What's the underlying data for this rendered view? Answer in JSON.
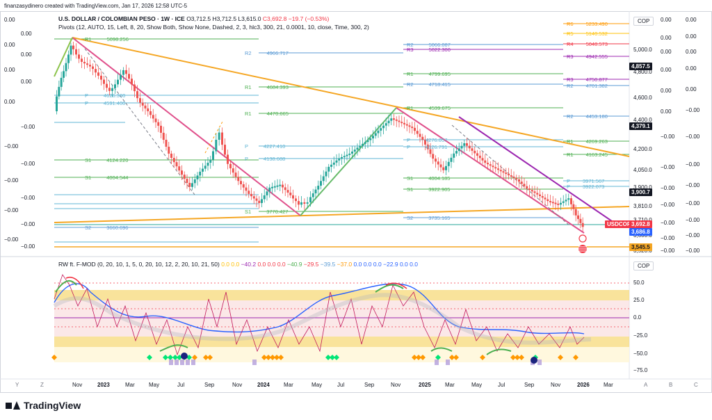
{
  "header": {
    "credit": "finanzasydinero created with TradingView.com, Jan 17, 2026 12:58 UTC-5"
  },
  "price": {
    "symbol": "U.S. DOLLAR / COLOMBIAN PESO · 1W · ICE",
    "open": "O3,712.5",
    "high": "H3,712.5",
    "low": "L3,615.0",
    "close": "C3,692.8",
    "change": "−19.7 (−0.53%)"
  },
  "pivots_line": "Pivots (12, AUTO, 15, Left, 8, 20, Show Both, Show None, Dashed, 2, 3, hlc3, 300, 21, 0.0001, 10, close, Time, 300, 2)",
  "osc_line": {
    "name": "RW ft. F-MOD (0, 20, 10, 1, 5, 0, 20, 10, 12, 2, 20, 10, 21, 50)",
    "values": [
      "0.0",
      "0.0",
      "−40.2",
      "0.0",
      "0.0",
      "0.0",
      "−40.9",
      "−29.5",
      "−39.5",
      "−37.0",
      "0.0",
      "0.0",
      "0.0",
      "−22.9",
      "0.0",
      "0.0"
    ]
  },
  "price_axis": {
    "currency": "COP",
    "ticks": [
      "5,000.0",
      "4,800.0",
      "4,600.0",
      "4,400.0",
      "4,200.0",
      "4,050.0",
      "3,900.0",
      "3,810.0",
      "3,710.0",
      "3,600.0",
      "3,520.0"
    ],
    "tags": {
      "t1": "4,857.5",
      "t2": "4,379.1",
      "t3": "3,900.7",
      "symbol": "USDCOP",
      "last": "3,692.8",
      "t4": "3,686.8",
      "t5": "3,545.5"
    }
  },
  "osc_axis": {
    "currency": "COP",
    "ticks": [
      "50.0",
      "25.0",
      "0.0",
      "−25.0",
      "−50.0",
      "−75.0"
    ]
  },
  "left_values": [
    "0.00",
    "0.00",
    "0.00",
    "0.00",
    "0.00",
    "0.00",
    "0.00",
    "−0.00",
    "−0.00",
    "−0.00",
    "−0.00",
    "−0.00",
    "−0.00",
    "−0.00",
    "−0.00",
    "−0.00"
  ],
  "right_values_a": [
    "0.00",
    "0.00",
    "0.00",
    "0.00",
    "0.00",
    "0.00",
    "−0.00",
    "−0.00",
    "−0.00",
    "−0.00",
    "−0.00",
    "−0.00",
    "−0.00",
    "−0.00"
  ],
  "right_values_b": [
    "0.00",
    "0.00",
    "0.00",
    "0.00",
    "0.00",
    "−0.00",
    "−0.00",
    "−0.00",
    "−0.00",
    "−0.00",
    "−0.00",
    "−0.00",
    "−0.00",
    "−0.00"
  ],
  "time_axis": [
    "Y",
    "Z",
    "Nov",
    "2023",
    "Mar",
    "May",
    "Jul",
    "Sep",
    "Nov",
    "2024",
    "Mar",
    "May",
    "Jul",
    "Sep",
    "Nov",
    "2025",
    "Mar",
    "May",
    "Jul",
    "Sep",
    "Nov",
    "2026",
    "Mar",
    "A",
    "B",
    "C"
  ],
  "pivots": [
    {
      "k": "R1",
      "v": "5098.256"
    },
    {
      "k": "R2",
      "v": "4966.717"
    },
    {
      "k": "R1",
      "v": "4684.393"
    },
    {
      "k": "R1",
      "v": "4470.665"
    },
    {
      "k": "P",
      "v": "4227.410"
    },
    {
      "k": "P",
      "v": "4138.688"
    },
    {
      "k": "S1",
      "v": "4124.220"
    },
    {
      "k": "S1",
      "v": "4004.544"
    },
    {
      "k": "S1",
      "v": "3770.427"
    },
    {
      "k": "S2",
      "v": "3660.696"
    },
    {
      "k": "R2",
      "v": "5066.087"
    },
    {
      "k": "R3",
      "v": "5022.300"
    },
    {
      "k": "R1",
      "v": "4799.695"
    },
    {
      "k": "R2",
      "v": "4718.415"
    },
    {
      "k": "R1",
      "v": "4539.675"
    },
    {
      "k": "S1",
      "v": "4004.185"
    },
    {
      "k": "S1",
      "v": "3922.905"
    },
    {
      "k": "S2",
      "v": "3735.165"
    },
    {
      "k": "R6",
      "v": "5233.490"
    },
    {
      "k": "R5",
      "v": "5140.532"
    },
    {
      "k": "R4",
      "v": "5048.573"
    },
    {
      "k": "R3",
      "v": "4942.555"
    },
    {
      "k": "R3",
      "v": "4750.877"
    },
    {
      "k": "R2",
      "v": "4701.382"
    },
    {
      "k": "R2",
      "v": "4453.180"
    },
    {
      "k": "R1",
      "v": "4269.263"
    },
    {
      "k": "R1",
      "v": "4163.245"
    },
    {
      "k": "P",
      "v": "3971.567"
    },
    {
      "k": "P",
      "v": "3922.073"
    },
    {
      "k": "P",
      "v": "4276.057"
    },
    {
      "k": "P",
      "v": "4126.791"
    },
    {
      "k": "P",
      "v": "4626.300"
    },
    {
      "k": "P",
      "v": "4591.400"
    }
  ],
  "footer": {
    "brand": "TradingView"
  }
}
